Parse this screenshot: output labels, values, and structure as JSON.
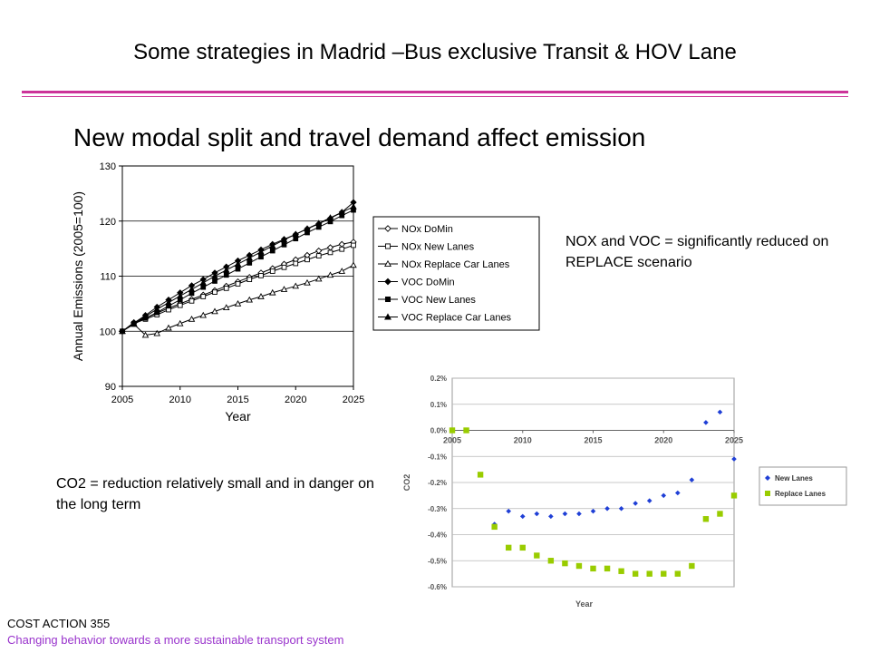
{
  "slide": {
    "title": "Some strategies in Madrid –Bus exclusive Transit & HOV Lane",
    "subtitle": "New modal split and travel demand affect emission",
    "note_nox": "NOX and VOC = significantly reduced on REPLACE scenario",
    "note_co2": "CO2  =  reduction relatively small and in danger on the long term",
    "footer_line1": "COST ACTION 355",
    "footer_line2": "Changing behavior towards a more sustainable transport system",
    "accent_color": "#cc3399",
    "footer_color": "#9933cc"
  },
  "chart_data": [
    {
      "type": "line",
      "xlabel": "Year",
      "ylabel": "Annual Emissions (2005=100)",
      "xlim": [
        2005,
        2025
      ],
      "ylim": [
        90,
        130
      ],
      "xticks": [
        "2005",
        "2010",
        "2015",
        "2020",
        "2025"
      ],
      "yticks": [
        "90",
        "100",
        "110",
        "120",
        "130"
      ],
      "grid": true,
      "legend_position": "right",
      "x": [
        2005,
        2006,
        2007,
        2008,
        2009,
        2010,
        2011,
        2012,
        2013,
        2014,
        2015,
        2016,
        2017,
        2018,
        2019,
        2020,
        2021,
        2022,
        2023,
        2024,
        2025
      ],
      "series": [
        {
          "name": "NOx DoMin",
          "marker": "diamond-open",
          "values": [
            100,
            101.6,
            102.4,
            103.3,
            104.2,
            105.0,
            105.8,
            106.6,
            107.4,
            108.2,
            109.0,
            109.8,
            110.6,
            111.4,
            112.2,
            113.0,
            113.8,
            114.6,
            115.2,
            115.8,
            116.2
          ]
        },
        {
          "name": "NOx New Lanes",
          "marker": "square-open",
          "values": [
            100,
            101.4,
            102.2,
            103.0,
            103.9,
            104.7,
            105.5,
            106.3,
            107.1,
            107.8,
            108.6,
            109.4,
            110.1,
            110.9,
            111.6,
            112.3,
            113.0,
            113.7,
            114.3,
            114.9,
            115.6
          ]
        },
        {
          "name": "NOx Replace Car Lanes",
          "marker": "triangle-open",
          "values": [
            100,
            101.3,
            99.3,
            99.6,
            100.6,
            101.4,
            102.2,
            102.9,
            103.6,
            104.3,
            105.0,
            105.7,
            106.3,
            107.0,
            107.6,
            108.2,
            108.8,
            109.5,
            110.2,
            110.9,
            112.0
          ]
        },
        {
          "name": "VOC DoMin",
          "marker": "diamond",
          "values": [
            100,
            101.5,
            102.9,
            104.4,
            105.7,
            107.0,
            108.3,
            109.4,
            110.6,
            111.7,
            112.8,
            113.8,
            114.8,
            115.8,
            116.7,
            117.6,
            118.6,
            119.5,
            120.5,
            121.6,
            123.4
          ]
        },
        {
          "name": "VOC New Lanes",
          "marker": "square",
          "values": [
            100,
            101.3,
            102.4,
            103.4,
            104.6,
            105.7,
            106.9,
            108.0,
            109.1,
            110.2,
            111.3,
            112.4,
            113.5,
            114.6,
            115.7,
            116.8,
            117.9,
            118.9,
            119.9,
            121.0,
            122.0
          ]
        },
        {
          "name": "VOC Replace Car Lanes",
          "marker": "triangle",
          "values": [
            100,
            101.4,
            102.7,
            104.0,
            105.2,
            106.4,
            107.6,
            108.8,
            110.0,
            111.1,
            112.2,
            113.3,
            114.4,
            115.5,
            116.6,
            117.6,
            118.6,
            119.6,
            120.6,
            121.6,
            122.6
          ]
        }
      ]
    },
    {
      "type": "scatter",
      "xlabel": "Year",
      "ylabel": "CO2",
      "xlim": [
        2005,
        2025
      ],
      "ylim": [
        -0.006,
        0.002
      ],
      "xticks": [
        "2005",
        "2010",
        "2015",
        "2020",
        "2025"
      ],
      "yticks": [
        "0.2%",
        "0.1%",
        "0.0%",
        "-0.1%",
        "-0.2%",
        "-0.3%",
        "-0.4%",
        "-0.5%",
        "-0.6%"
      ],
      "grid": true,
      "legend_position": "right",
      "series": [
        {
          "name": "New Lanes",
          "color": "#1f3fd6",
          "marker": "diamond",
          "x": [
            2005,
            2006,
            2007,
            2008,
            2009,
            2010,
            2011,
            2012,
            2013,
            2014,
            2015,
            2016,
            2017,
            2018,
            2019,
            2020,
            2021,
            2022,
            2023,
            2024,
            2025
          ],
          "values": [
            0.0,
            0.0,
            -0.0017,
            -0.0036,
            -0.0031,
            -0.0033,
            -0.0032,
            -0.0033,
            -0.0032,
            -0.0032,
            -0.0031,
            -0.003,
            -0.003,
            -0.0028,
            -0.0027,
            -0.0025,
            -0.0024,
            -0.0019,
            0.0003,
            0.0007,
            -0.0011
          ]
        },
        {
          "name": "Replace Lanes",
          "color": "#99cc00",
          "marker": "square",
          "x": [
            2005,
            2006,
            2007,
            2008,
            2009,
            2010,
            2011,
            2012,
            2013,
            2014,
            2015,
            2016,
            2017,
            2018,
            2019,
            2020,
            2021,
            2022,
            2023,
            2024,
            2025
          ],
          "values": [
            0.0,
            0.0,
            -0.0017,
            -0.0037,
            -0.0045,
            -0.0045,
            -0.0048,
            -0.005,
            -0.0051,
            -0.0052,
            -0.0053,
            -0.0053,
            -0.0054,
            -0.0055,
            -0.0055,
            -0.0055,
            -0.0055,
            -0.0052,
            -0.0034,
            -0.0032,
            -0.0025
          ]
        }
      ]
    }
  ]
}
